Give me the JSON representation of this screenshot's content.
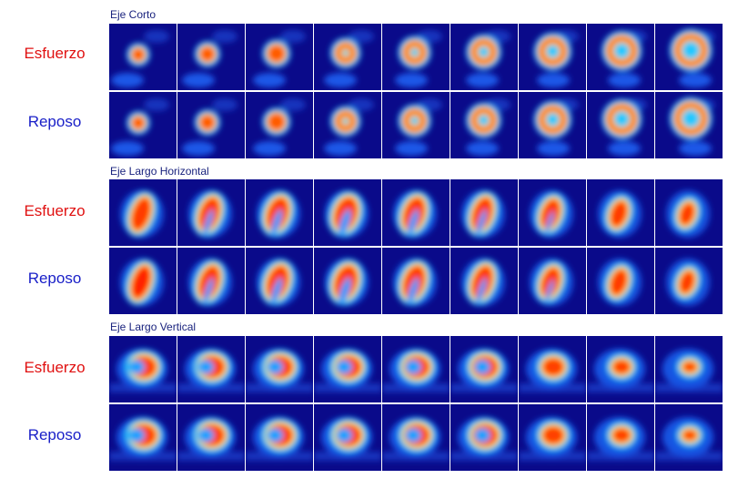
{
  "sections": [
    {
      "title": "Eje Corto",
      "rows": [
        {
          "label": "Esfuerzo",
          "kind": "stress",
          "view": "short"
        },
        {
          "label": "Reposo",
          "kind": "rest",
          "view": "short"
        }
      ]
    },
    {
      "title": "Eje Largo Horizontal",
      "rows": [
        {
          "label": "Esfuerzo",
          "kind": "stress",
          "view": "hla"
        },
        {
          "label": "Reposo",
          "kind": "rest",
          "view": "hla"
        }
      ]
    },
    {
      "title": "Eje Largo Vertical",
      "rows": [
        {
          "label": "Esfuerzo",
          "kind": "stress",
          "view": "vla"
        },
        {
          "label": "Reposo",
          "kind": "rest",
          "view": "vla"
        }
      ]
    }
  ],
  "frames_per_row": 9,
  "colors": {
    "stress_label": "#e01010",
    "rest_label": "#1a20c8",
    "title": "#1a237e",
    "bg_dark": "#0a0a8a"
  }
}
